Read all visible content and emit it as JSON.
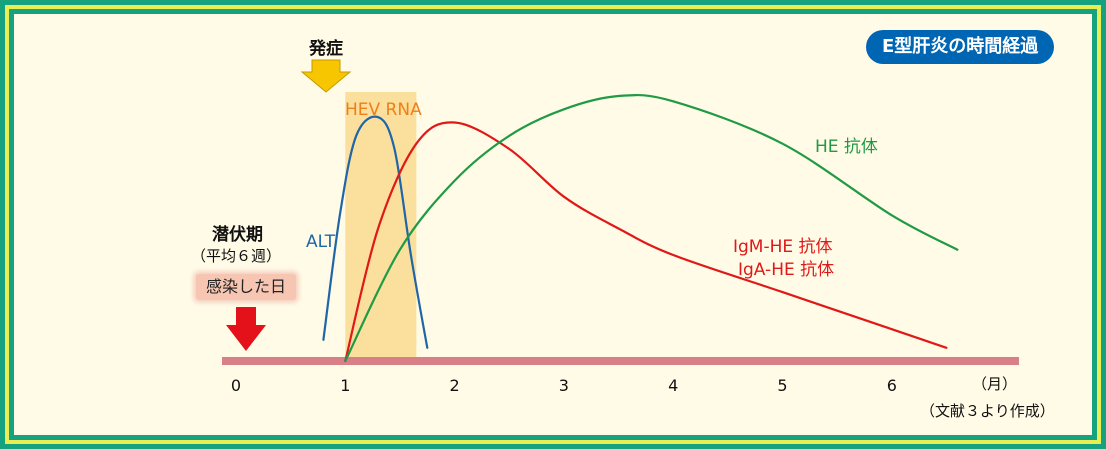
{
  "title": "E型肝炎の時間経過",
  "onset_label": "発症",
  "hev_rna_label": "HEV RNA",
  "alt_label": "ALT",
  "igm_label": "IgM-HE 抗体",
  "iga_label": "IgA-HE 抗体",
  "he_label": "HE 抗体",
  "incubation_label": "潜伏期",
  "incubation_sub": "（平均６週）",
  "infection_label": "感染した日",
  "axis_unit": "（月）",
  "source_note": "（文献３より作成）",
  "colors": {
    "alt": "#1f66a8",
    "igm_iga": "#e01818",
    "he": "#1f9a45",
    "hev_rna": "#ef7f1a",
    "band": "#fbdf9c",
    "axis": "#d87f88",
    "frame_outer": "#17a27f",
    "frame_inner": "#e9ee55",
    "background": "#fffbe6"
  },
  "chart_data": {
    "type": "line",
    "x_unit_label": "（月）",
    "xlim": [
      0,
      7
    ],
    "x_ticks": [
      "0",
      "1",
      "2",
      "3",
      "4",
      "5",
      "6"
    ],
    "hev_rna_window": [
      1.0,
      1.65
    ],
    "onset_month": 0.75,
    "infection_month": 0,
    "series": [
      {
        "name": "ALT",
        "x": [
          0.8,
          0.95,
          1.1,
          1.3,
          1.45,
          1.6,
          1.75
        ],
        "y": [
          0.08,
          0.55,
          0.85,
          0.92,
          0.8,
          0.4,
          0.05
        ]
      },
      {
        "name": "IgM-HE 抗体 / IgA-HE 抗体",
        "x": [
          1.0,
          1.3,
          1.65,
          2.0,
          2.5,
          3.0,
          3.5,
          4.0,
          5.0,
          6.0,
          6.5
        ],
        "y": [
          0.0,
          0.5,
          0.82,
          0.9,
          0.8,
          0.62,
          0.5,
          0.4,
          0.26,
          0.12,
          0.05
        ]
      },
      {
        "name": "HE 抗体",
        "x": [
          1.0,
          1.5,
          2.0,
          2.5,
          3.0,
          3.5,
          4.0,
          5.0,
          6.0,
          6.6
        ],
        "y": [
          0.0,
          0.42,
          0.68,
          0.85,
          0.95,
          1.0,
          0.98,
          0.82,
          0.55,
          0.42
        ]
      }
    ]
  }
}
